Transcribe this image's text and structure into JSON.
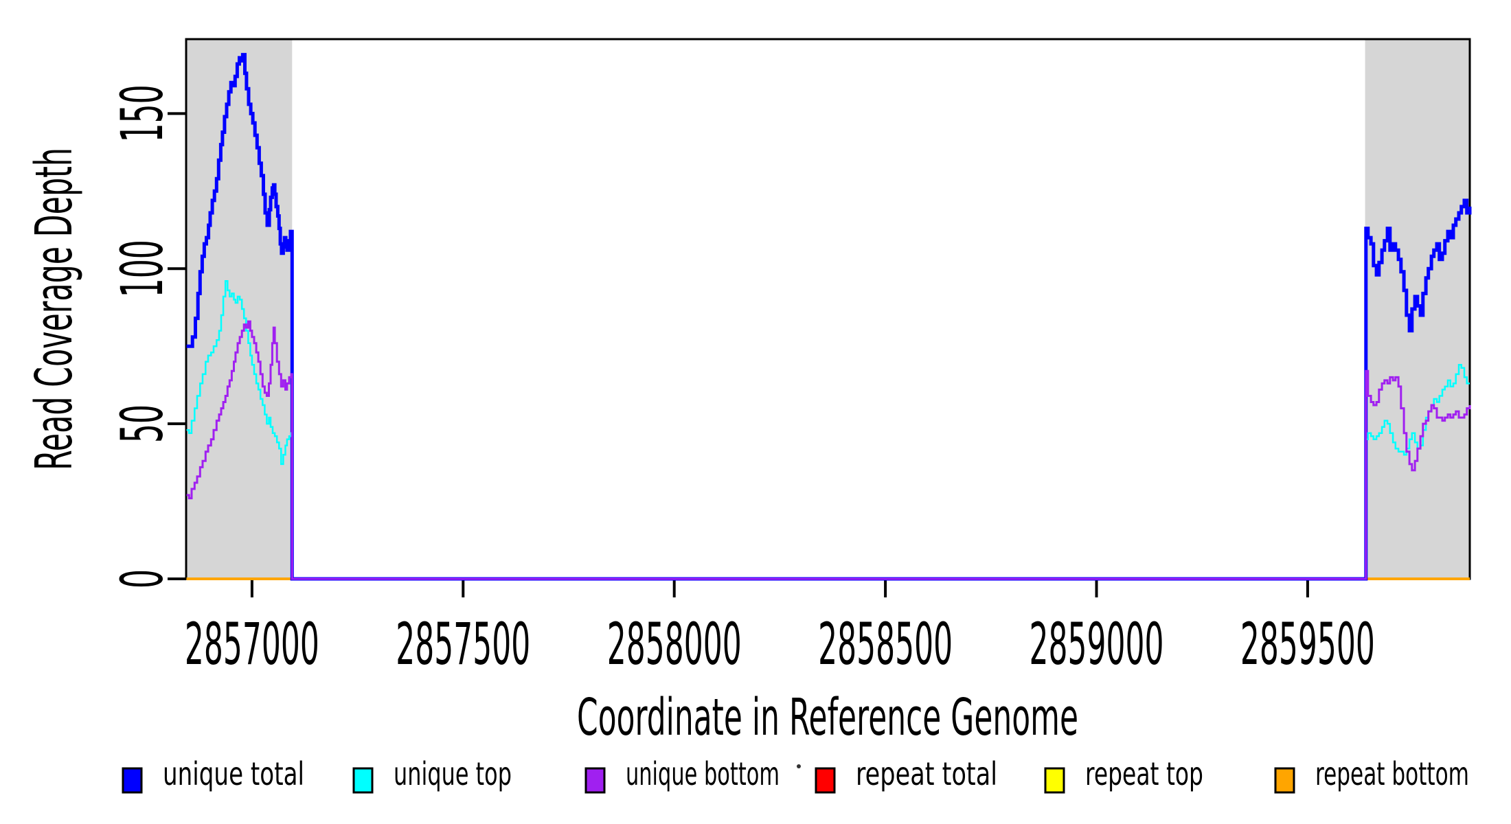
{
  "figure": {
    "xlabel": "Coordinate in Reference Genome",
    "ylabel": "Read Coverage Depth"
  },
  "legend": {
    "items": [
      {
        "label": "unique total",
        "color": "#0000FF"
      },
      {
        "label": "unique top",
        "color": "#00FFFF"
      },
      {
        "label": "unique bottom",
        "color": "#A020F0"
      },
      {
        "label": "repeat total",
        "color": "#FF0000"
      },
      {
        "label": "repeat top",
        "color": "#FFFF00"
      },
      {
        "label": "repeat bottom",
        "color": "#FFA500"
      }
    ]
  },
  "chart_data": {
    "type": "line",
    "step": true,
    "title": "",
    "xlabel": "Coordinate in Reference Genome",
    "ylabel": "Read Coverage Depth",
    "xlim": [
      2856844,
      2859884
    ],
    "ylim": [
      0,
      174
    ],
    "x_ticks": [
      2857000,
      2857500,
      2858000,
      2858500,
      2859000,
      2859500
    ],
    "y_ticks": [
      0,
      50,
      100,
      150
    ],
    "grid": false,
    "legend_position": "bottom",
    "plot_background": "#FFFFFF",
    "highlight_color": "#D6D6D6",
    "highlight_regions": [
      {
        "x0": 2856844,
        "x1": 2857095,
        "color": "#D6D6D6"
      },
      {
        "x0": 2859636,
        "x1": 2859884,
        "color": "#D6D6D6"
      }
    ],
    "series": [
      {
        "name": "repeat total",
        "color": "#FF0000",
        "width": 4,
        "points": [
          [
            2856845,
            0
          ],
          [
            2859884,
            0
          ]
        ]
      },
      {
        "name": "repeat top",
        "color": "#FFFF00",
        "width": 4,
        "points": [
          [
            2856845,
            0
          ],
          [
            2859884,
            0
          ]
        ]
      },
      {
        "name": "repeat bottom",
        "color": "#FFA500",
        "width": 4,
        "points": [
          [
            2856845,
            0
          ],
          [
            2859884,
            0
          ]
        ]
      },
      {
        "name": "unique total",
        "color": "#0000FF",
        "width": 5,
        "points": [
          [
            2856845,
            75
          ],
          [
            2856853,
            75
          ],
          [
            2856859,
            78
          ],
          [
            2856866,
            84
          ],
          [
            2856872,
            92
          ],
          [
            2856877,
            99
          ],
          [
            2856882,
            104
          ],
          [
            2856887,
            108
          ],
          [
            2856892,
            110
          ],
          [
            2856897,
            114
          ],
          [
            2856901,
            118
          ],
          [
            2856906,
            122
          ],
          [
            2856911,
            125
          ],
          [
            2856916,
            129
          ],
          [
            2856921,
            135
          ],
          [
            2856926,
            140
          ],
          [
            2856930,
            144
          ],
          [
            2856935,
            149
          ],
          [
            2856940,
            153
          ],
          [
            2856945,
            157
          ],
          [
            2856950,
            160
          ],
          [
            2856955,
            159
          ],
          [
            2856960,
            162
          ],
          [
            2856965,
            166
          ],
          [
            2856970,
            168
          ],
          [
            2856975,
            167
          ],
          [
            2856978,
            169
          ],
          [
            2856983,
            163
          ],
          [
            2856987,
            158
          ],
          [
            2856992,
            153
          ],
          [
            2856997,
            150
          ],
          [
            2857002,
            147
          ],
          [
            2857007,
            143
          ],
          [
            2857012,
            139
          ],
          [
            2857017,
            134
          ],
          [
            2857022,
            130
          ],
          [
            2857027,
            124
          ],
          [
            2857031,
            118
          ],
          [
            2857036,
            114
          ],
          [
            2857041,
            119
          ],
          [
            2857044,
            123
          ],
          [
            2857048,
            126
          ],
          [
            2857051,
            127
          ],
          [
            2857054,
            124
          ],
          [
            2857057,
            120
          ],
          [
            2857061,
            117
          ],
          [
            2857064,
            113
          ],
          [
            2857067,
            108
          ],
          [
            2857070,
            105
          ],
          [
            2857074,
            107
          ],
          [
            2857077,
            110
          ],
          [
            2857080,
            108
          ],
          [
            2857083,
            106
          ],
          [
            2857087,
            109
          ],
          [
            2857091,
            112
          ],
          [
            2857095,
            0
          ],
          [
            2859636,
            0
          ],
          [
            2859638,
            113
          ],
          [
            2859643,
            110
          ],
          [
            2859650,
            108
          ],
          [
            2859656,
            101
          ],
          [
            2859663,
            98
          ],
          [
            2859669,
            102
          ],
          [
            2859676,
            106
          ],
          [
            2859682,
            109
          ],
          [
            2859689,
            113
          ],
          [
            2859695,
            106
          ],
          [
            2859702,
            108
          ],
          [
            2859708,
            106
          ],
          [
            2859715,
            103
          ],
          [
            2859721,
            99
          ],
          [
            2859728,
            93
          ],
          [
            2859734,
            85
          ],
          [
            2859741,
            80
          ],
          [
            2859747,
            87
          ],
          [
            2859754,
            91
          ],
          [
            2859760,
            88
          ],
          [
            2859767,
            85
          ],
          [
            2859773,
            92
          ],
          [
            2859780,
            97
          ],
          [
            2859786,
            100
          ],
          [
            2859793,
            104
          ],
          [
            2859799,
            106
          ],
          [
            2859806,
            108
          ],
          [
            2859812,
            103
          ],
          [
            2859819,
            105
          ],
          [
            2859825,
            109
          ],
          [
            2859832,
            112
          ],
          [
            2859838,
            110
          ],
          [
            2859845,
            114
          ],
          [
            2859851,
            116
          ],
          [
            2859858,
            118
          ],
          [
            2859864,
            120
          ],
          [
            2859871,
            122
          ],
          [
            2859877,
            118
          ],
          [
            2859884,
            120
          ]
        ]
      },
      {
        "name": "unique top",
        "color": "#00FFFF",
        "width": 2.5,
        "points": [
          [
            2856845,
            48
          ],
          [
            2856851,
            47
          ],
          [
            2856857,
            51
          ],
          [
            2856864,
            55
          ],
          [
            2856870,
            59
          ],
          [
            2856877,
            63
          ],
          [
            2856883,
            66
          ],
          [
            2856890,
            70
          ],
          [
            2856896,
            72
          ],
          [
            2856903,
            73
          ],
          [
            2856909,
            75
          ],
          [
            2856916,
            77
          ],
          [
            2856922,
            80
          ],
          [
            2856927,
            85
          ],
          [
            2856932,
            91
          ],
          [
            2856937,
            96
          ],
          [
            2856942,
            93
          ],
          [
            2856947,
            91
          ],
          [
            2856952,
            92
          ],
          [
            2856957,
            90
          ],
          [
            2856961,
            89
          ],
          [
            2856966,
            91
          ],
          [
            2856971,
            90
          ],
          [
            2856976,
            87
          ],
          [
            2856981,
            84
          ],
          [
            2856986,
            80
          ],
          [
            2856991,
            76
          ],
          [
            2856996,
            72
          ],
          [
            2857000,
            69
          ],
          [
            2857005,
            66
          ],
          [
            2857010,
            63
          ],
          [
            2857015,
            61
          ],
          [
            2857020,
            58
          ],
          [
            2857025,
            56
          ],
          [
            2857030,
            53
          ],
          [
            2857035,
            50
          ],
          [
            2857040,
            52
          ],
          [
            2857044,
            49
          ],
          [
            2857049,
            47
          ],
          [
            2857054,
            46
          ],
          [
            2857059,
            44
          ],
          [
            2857064,
            42
          ],
          [
            2857069,
            37
          ],
          [
            2857074,
            40
          ],
          [
            2857079,
            43
          ],
          [
            2857083,
            45
          ],
          [
            2857088,
            46
          ],
          [
            2857093,
            47
          ],
          [
            2857095,
            0
          ],
          [
            2859636,
            0
          ],
          [
            2859638,
            45
          ],
          [
            2859643,
            47
          ],
          [
            2859650,
            46
          ],
          [
            2859656,
            45
          ],
          [
            2859663,
            46
          ],
          [
            2859669,
            47
          ],
          [
            2859676,
            49
          ],
          [
            2859682,
            51
          ],
          [
            2859689,
            50
          ],
          [
            2859695,
            47
          ],
          [
            2859702,
            44
          ],
          [
            2859708,
            42
          ],
          [
            2859715,
            41
          ],
          [
            2859721,
            41
          ],
          [
            2859728,
            40
          ],
          [
            2859734,
            42
          ],
          [
            2859741,
            45
          ],
          [
            2859747,
            47
          ],
          [
            2859754,
            44
          ],
          [
            2859760,
            42
          ],
          [
            2859767,
            43
          ],
          [
            2859773,
            48
          ],
          [
            2859780,
            52
          ],
          [
            2859786,
            54
          ],
          [
            2859793,
            56
          ],
          [
            2859799,
            58
          ],
          [
            2859806,
            57
          ],
          [
            2859812,
            59
          ],
          [
            2859819,
            61
          ],
          [
            2859825,
            62
          ],
          [
            2859832,
            64
          ],
          [
            2859838,
            62
          ],
          [
            2859845,
            63
          ],
          [
            2859851,
            66
          ],
          [
            2859858,
            69
          ],
          [
            2859864,
            68
          ],
          [
            2859871,
            65
          ],
          [
            2859877,
            63
          ],
          [
            2859884,
            63
          ]
        ]
      },
      {
        "name": "unique bottom",
        "color": "#A020F0",
        "width": 3,
        "points": [
          [
            2856845,
            27
          ],
          [
            2856851,
            26
          ],
          [
            2856857,
            29
          ],
          [
            2856864,
            31
          ],
          [
            2856870,
            33
          ],
          [
            2856877,
            36
          ],
          [
            2856883,
            38
          ],
          [
            2856890,
            41
          ],
          [
            2856896,
            43
          ],
          [
            2856903,
            45
          ],
          [
            2856909,
            48
          ],
          [
            2856916,
            51
          ],
          [
            2856922,
            53
          ],
          [
            2856927,
            55
          ],
          [
            2856932,
            57
          ],
          [
            2856937,
            59
          ],
          [
            2856942,
            62
          ],
          [
            2856947,
            64
          ],
          [
            2856952,
            67
          ],
          [
            2856957,
            70
          ],
          [
            2856961,
            73
          ],
          [
            2856966,
            76
          ],
          [
            2856971,
            78
          ],
          [
            2856976,
            80
          ],
          [
            2856981,
            82
          ],
          [
            2856986,
            81
          ],
          [
            2856991,
            83
          ],
          [
            2856996,
            80
          ],
          [
            2857000,
            78
          ],
          [
            2857005,
            76
          ],
          [
            2857010,
            73
          ],
          [
            2857015,
            70
          ],
          [
            2857020,
            66
          ],
          [
            2857025,
            62
          ],
          [
            2857030,
            60
          ],
          [
            2857035,
            59
          ],
          [
            2857040,
            63
          ],
          [
            2857044,
            69
          ],
          [
            2857048,
            76
          ],
          [
            2857051,
            81
          ],
          [
            2857054,
            76
          ],
          [
            2857059,
            70
          ],
          [
            2857064,
            66
          ],
          [
            2857069,
            62
          ],
          [
            2857074,
            64
          ],
          [
            2857079,
            61
          ],
          [
            2857083,
            63
          ],
          [
            2857088,
            65
          ],
          [
            2857093,
            66
          ],
          [
            2857095,
            0
          ],
          [
            2859636,
            0
          ],
          [
            2859638,
            67
          ],
          [
            2859643,
            59
          ],
          [
            2859650,
            57
          ],
          [
            2859656,
            56
          ],
          [
            2859663,
            57
          ],
          [
            2859669,
            61
          ],
          [
            2859676,
            63
          ],
          [
            2859682,
            64
          ],
          [
            2859689,
            63
          ],
          [
            2859695,
            65
          ],
          [
            2859702,
            64
          ],
          [
            2859708,
            65
          ],
          [
            2859715,
            62
          ],
          [
            2859721,
            55
          ],
          [
            2859728,
            47
          ],
          [
            2859734,
            41
          ],
          [
            2859741,
            37
          ],
          [
            2859747,
            35
          ],
          [
            2859754,
            38
          ],
          [
            2859760,
            42
          ],
          [
            2859767,
            46
          ],
          [
            2859773,
            50
          ],
          [
            2859780,
            51
          ],
          [
            2859786,
            54
          ],
          [
            2859793,
            56
          ],
          [
            2859799,
            55
          ],
          [
            2859806,
            52
          ],
          [
            2859812,
            52
          ],
          [
            2859819,
            51
          ],
          [
            2859825,
            52
          ],
          [
            2859832,
            53
          ],
          [
            2859838,
            52
          ],
          [
            2859845,
            53
          ],
          [
            2859851,
            54
          ],
          [
            2859858,
            52
          ],
          [
            2859864,
            52
          ],
          [
            2859871,
            53
          ],
          [
            2859877,
            55
          ],
          [
            2859884,
            56
          ]
        ]
      }
    ]
  }
}
